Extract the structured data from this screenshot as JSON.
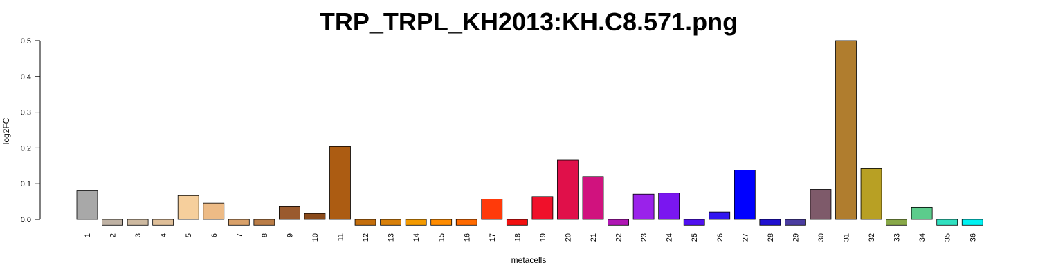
{
  "chart_data": {
    "type": "bar",
    "title": "TRP_TRPL_KH2013:KH.C8.571.png",
    "xlabel": "metacells",
    "ylabel": "log2FC",
    "ylim": [
      0,
      0.5
    ],
    "yticks": [
      "0.0",
      "0.1",
      "0.2",
      "0.3",
      "0.4",
      "0.5"
    ],
    "yticks_values": [
      0,
      0.1,
      0.2,
      0.3,
      0.4,
      0.5
    ],
    "grid": false,
    "categories": [
      "1",
      "2",
      "3",
      "4",
      "5",
      "6",
      "7",
      "8",
      "9",
      "10",
      "11",
      "12",
      "13",
      "14",
      "15",
      "16",
      "17",
      "18",
      "19",
      "20",
      "21",
      "22",
      "23",
      "24",
      "25",
      "26",
      "27",
      "28",
      "29",
      "30",
      "31",
      "32",
      "33",
      "34",
      "35",
      "36"
    ],
    "values": [
      0.08,
      -0.016,
      -0.016,
      -0.016,
      0.067,
      0.046,
      -0.016,
      -0.016,
      0.036,
      0.017,
      0.204,
      -0.016,
      -0.016,
      -0.016,
      -0.016,
      -0.016,
      0.057,
      -0.016,
      0.064,
      0.166,
      0.12,
      -0.016,
      0.071,
      0.074,
      -0.016,
      0.021,
      0.138,
      -0.016,
      -0.016,
      0.084,
      0.5,
      0.142,
      -0.016,
      0.034,
      -0.016,
      -0.016
    ],
    "colors": [
      "#a8a8a8",
      "#bfb2a4",
      "#cdb9a0",
      "#dfbf99",
      "#f6cf9c",
      "#edbb86",
      "#d9a16a",
      "#ba7d47",
      "#9a5a2e",
      "#8a4a1a",
      "#ac5c12",
      "#c46e0c",
      "#d8800a",
      "#f39a00",
      "#ff8c00",
      "#ff6a00",
      "#ff3a0a",
      "#f21010",
      "#f0102a",
      "#e0104a",
      "#d0127e",
      "#b016b4",
      "#9a22ea",
      "#7a16f0",
      "#5010f0",
      "#3216f0",
      "#0000ff",
      "#2010d0",
      "#4a3ca0",
      "#7e5a6a",
      "#b07d2e",
      "#b8a024",
      "#88a848",
      "#5ccc8c",
      "#30e0c0",
      "#00f2f2"
    ]
  }
}
